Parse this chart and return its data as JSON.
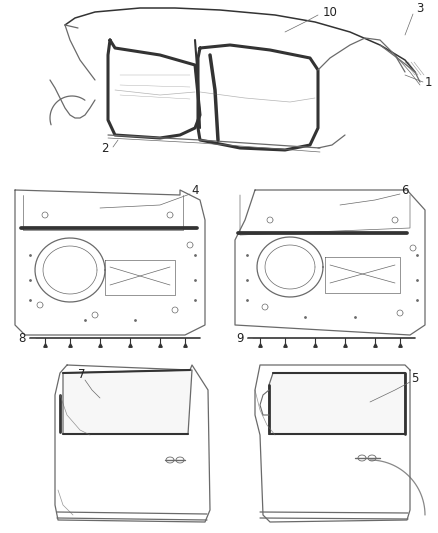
{
  "bg_color": "#ffffff",
  "line_color": "#6a6a6a",
  "dark_line": "#333333",
  "label_color": "#222222",
  "font_size": 8.5,
  "lw_main": 0.9,
  "lw_thick": 2.2,
  "lw_thin": 0.5
}
